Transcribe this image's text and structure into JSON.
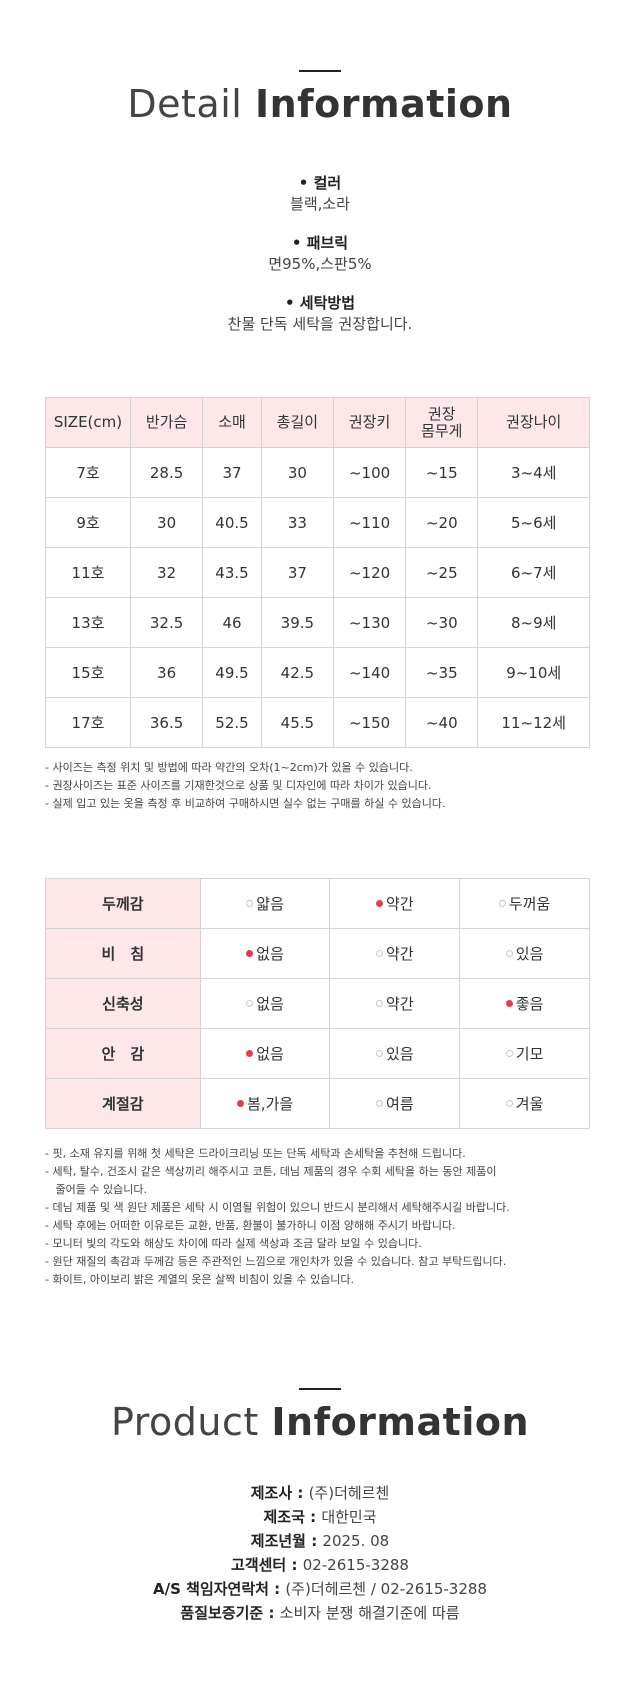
{
  "detail": {
    "title_light": "Detail",
    "title_bold": "Information",
    "specs": [
      {
        "label": "• 컬러",
        "value": "블랙,소라"
      },
      {
        "label": "• 패브릭",
        "value": "면95%,스판5%"
      },
      {
        "label": "• 세탁방법",
        "value": "찬물 단독 세탁을 권장합니다."
      }
    ]
  },
  "size_table": {
    "headers": [
      "SIZE(cm)",
      "반가슴",
      "소매",
      "총길이",
      "권장키",
      "권장\n몸무게",
      "권장나이"
    ],
    "rows": [
      [
        "7호",
        "28.5",
        "37",
        "30",
        "~100",
        "~15",
        "3~4세"
      ],
      [
        "9호",
        "30",
        "40.5",
        "33",
        "~110",
        "~20",
        "5~6세"
      ],
      [
        "11호",
        "32",
        "43.5",
        "37",
        "~120",
        "~25",
        "6~7세"
      ],
      [
        "13호",
        "32.5",
        "46",
        "39.5",
        "~130",
        "~30",
        "8~9세"
      ],
      [
        "15호",
        "36",
        "49.5",
        "42.5",
        "~140",
        "~35",
        "9~10세"
      ],
      [
        "17호",
        "36.5",
        "52.5",
        "45.5",
        "~150",
        "~40",
        "11~12세"
      ]
    ]
  },
  "size_notes": [
    "- 사이즈는 측정 위치 및 방법에 따라 약간의 오차(1~2cm)가 있을 수 있습니다.",
    "- 권장사이즈는 표준 사이즈를 기재한것으로 상품 및 디자인에 따라 차이가 있습니다.",
    "- 실제 입고 있는 옷을 측정 후 비교하여 구매하시면 실수 없는 구매를 하실 수 있습니다."
  ],
  "feel_table": {
    "rows": [
      {
        "label": "두께감",
        "options": [
          "얇음",
          "약간",
          "두꺼움"
        ],
        "selected": 1
      },
      {
        "label": "비　침",
        "options": [
          "없음",
          "약간",
          "있음"
        ],
        "selected": 0
      },
      {
        "label": "신축성",
        "options": [
          "없음",
          "약간",
          "좋음"
        ],
        "selected": 2
      },
      {
        "label": "안　감",
        "options": [
          "없음",
          "있음",
          "기모"
        ],
        "selected": 0
      },
      {
        "label": "계절감",
        "options": [
          "봄,가을",
          "여름",
          "겨울"
        ],
        "selected": 0
      }
    ],
    "selected_color": "#e53b4c"
  },
  "care_notes": [
    "- 핏, 소재 유지를 위해 첫 세탁은 드라이크리닝 또는 단독 세탁과 손세탁을 추천해 드립니다.",
    "- 세탁, 탈수, 건조시 같은 색상끼리 해주시고 코튼, 데님 제품의 경우 수회 세탁을 하는 동안 제품이",
    "   줄어들 수 있습니다.",
    "- 데님 제품 및 색 원단 제품은 세탁 시 이염될 위험이 있으니 반드시 분리해서 세탁해주시길 바랍니다.",
    "- 세탁 후에는 어떠한 이유로든 교환, 반품, 환불이 불가하니 이점 양해해 주시기 바랍니다.",
    "- 모니터 빛의 각도와 해상도 차이에 따라 실제 색상과 조금 달라 보일 수 있습니다.",
    "- 원단 재질의 촉감과 두께감 등은 주관적인 느낌으로 개인차가 있을 수 있습니다. 참고 부탁드립니다.",
    "- 화이트, 아이보리 밝은 계열의 옷은 살짝 비침이 있을 수 있습니다."
  ],
  "product": {
    "title_light": "Product",
    "title_bold": "Information",
    "info": [
      {
        "key": "제조사 : ",
        "value": "(주)더헤르첸"
      },
      {
        "key": "제조국 : ",
        "value": "대한민국"
      },
      {
        "key": "제조년월 : ",
        "value": "2025. 08"
      },
      {
        "key": "고객센터 : ",
        "value": "02-2615-3288"
      },
      {
        "key": "A/S 책임자연락처 : ",
        "value": "(주)더헤르첸 / 02-2615-3288"
      },
      {
        "key": "품질보증기준 : ",
        "value": "소비자 분쟁 해결기준에 따름"
      }
    ]
  }
}
